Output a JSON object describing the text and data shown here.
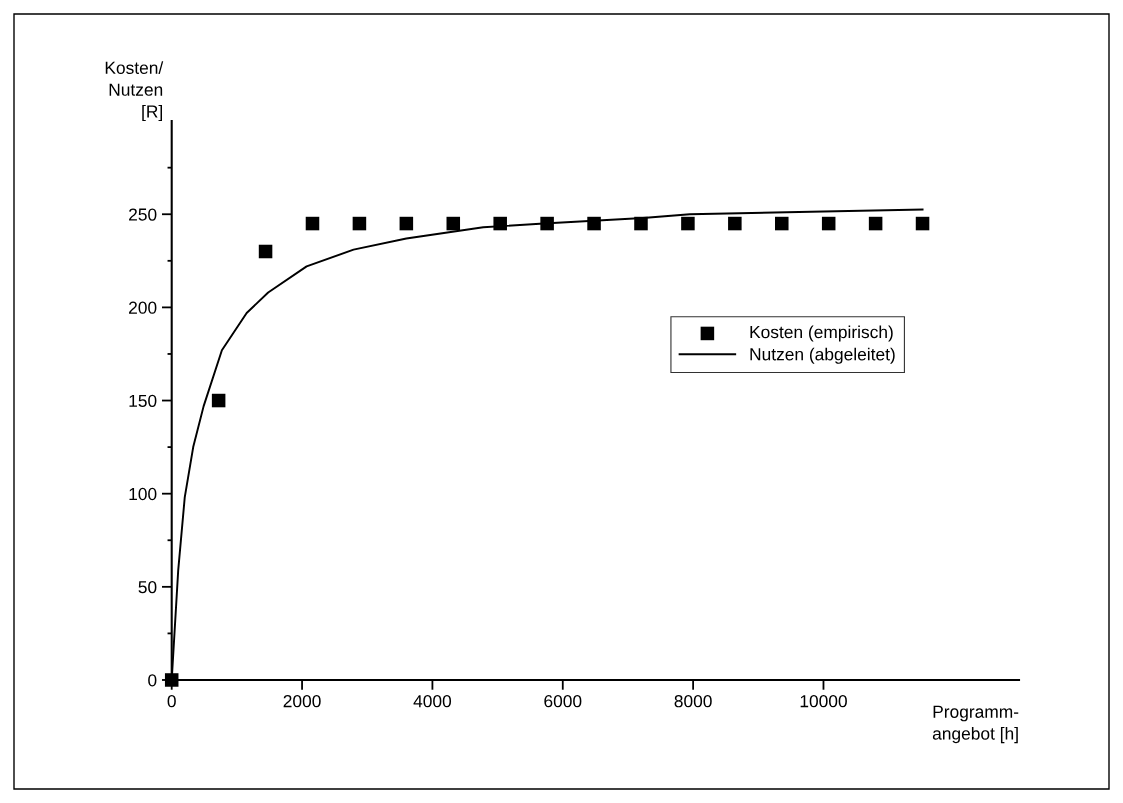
{
  "chart_data": {
    "type": "scatter",
    "xlabel": "Programm-\nangebot [h]",
    "ylabel": "Kosten/\nNutzen\n[R]",
    "series": [
      {
        "name": "Kosten (empirisch)",
        "color": "#000000",
        "marker": "square",
        "x": [
          0,
          720,
          1440,
          2160,
          2880,
          3600,
          4320,
          5040,
          5760,
          6480,
          7200,
          7920,
          8640,
          9360,
          10080,
          10800,
          11520
        ],
        "values": [
          0,
          150,
          230,
          245,
          245,
          245,
          245,
          245,
          245,
          245,
          245,
          245,
          245,
          245,
          245,
          245,
          245
        ]
      },
      {
        "name": "Nutzen (abgeleitet)",
        "type": "line",
        "color": "#000000",
        "marker": "none",
        "line_style": "solid",
        "x": [
          0,
          100,
          200,
          330,
          490,
          770,
          1150,
          1480,
          2070,
          2790,
          3600,
          4780,
          5710,
          7230,
          7950,
          10000,
          11520
        ],
        "values": [
          0,
          59,
          98,
          125,
          147,
          177,
          197,
          208,
          222,
          231,
          237,
          243,
          245,
          248,
          250,
          251.5,
          252.5
        ]
      }
    ],
    "xlim": [
      0,
      13000
    ],
    "ylim": [
      0,
      300
    ],
    "xticks": [
      0,
      2000,
      4000,
      6000,
      8000,
      10000
    ],
    "yticks": [
      0,
      {
        "value": 25,
        "label": null
      },
      50,
      {
        "value": 75,
        "label": null
      },
      100,
      {
        "value": 125,
        "label": null
      },
      150,
      {
        "value": 175,
        "label": null
      },
      200,
      {
        "value": 225,
        "label": null
      },
      250,
      {
        "value": 275,
        "label": null
      }
    ],
    "grid": false,
    "legend": "center right"
  }
}
